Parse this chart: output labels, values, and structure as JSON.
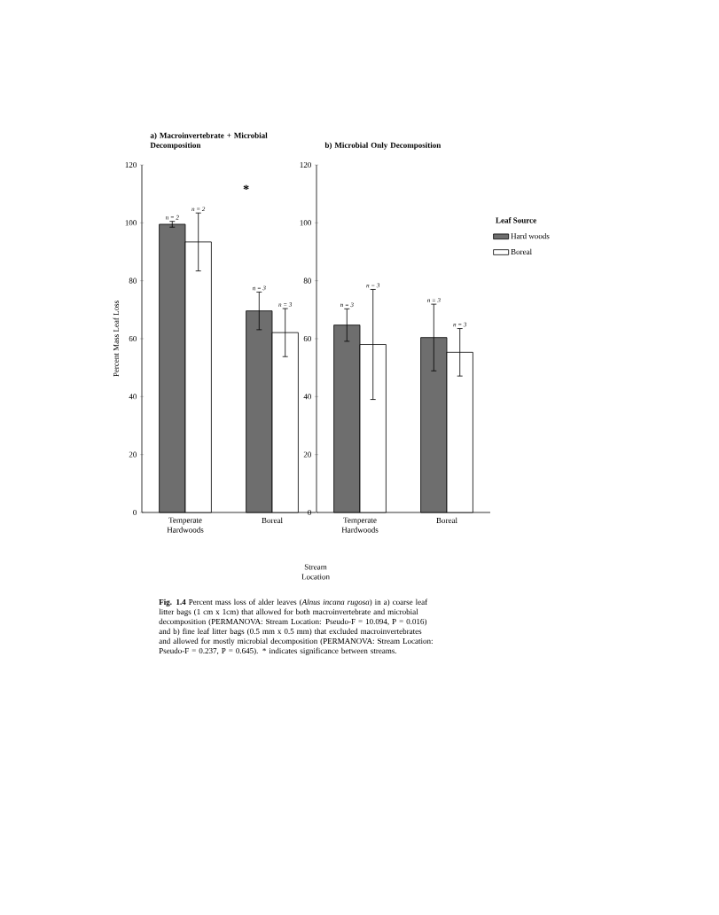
{
  "chart_data": [
    {
      "type": "bar",
      "title": "a) Macroinvertebrate + Microbial Decomposition",
      "ylabel": "Percent Mass Leaf Loss",
      "xlabel": "Stream Location",
      "categories": [
        "Temperate Hardwoods",
        "Boreal"
      ],
      "series": [
        {
          "color": "#6e6e6e",
          "values": [
            99.5,
            69.6
          ],
          "errors": [
            1,
            6.5
          ]
        },
        {
          "color": "#ffffff",
          "values": [
            93.4,
            62.1
          ],
          "errors": [
            10,
            8.3
          ]
        }
      ],
      "ylim": [
        0,
        120
      ],
      "yticks": [
        0,
        20,
        40,
        60,
        80,
        100,
        120
      ],
      "grid": false,
      "annotations": [
        "*",
        "n = 2",
        "n = 2",
        "n = 3",
        "n = 3",
        "**Fig. 1.4** Percent mass loss of alder leaves (*Alnus incana rugosa*) in a) coarse leaf litter bags (1 cm x 1cm) that allowed for both macroinvertebrate and microbial decomposition (PERMANOVA: Stream Location: Pseudo-F = 10.094, P = 0.016) and b) fine leaf litter bags (0.5 mm x 0.5 mm) that excluded macroinvertebrates and allowed for mostly microbial decomposition (PERMANOVA: Stream Location: Pseudo-F = 0.237, P = 0.645). * indicates significance between streams."
      ]
    },
    {
      "type": "bar",
      "title": "b) Microbial Only Decomposition",
      "categories": [
        "Temperate Hardwoods",
        "Boreal"
      ],
      "series": [
        {
          "name": "Hard woods",
          "color": "#6e6e6e",
          "values": [
            64.7,
            60.4
          ],
          "errors": [
            5.6,
            11.5
          ]
        },
        {
          "name": "Boreal",
          "color": "#ffffff",
          "values": [
            58.0,
            55.3
          ],
          "errors": [
            19,
            8.2
          ]
        }
      ],
      "ylim": [
        0,
        120
      ],
      "yticks": [
        0,
        20,
        40,
        60,
        80,
        100,
        120
      ],
      "grid": false,
      "annotations": [
        "n = 3",
        "n = 3",
        "n = 3",
        "n = 3"
      ],
      "legend": "right",
      "legend_title": "Leaf Source"
    }
  ]
}
